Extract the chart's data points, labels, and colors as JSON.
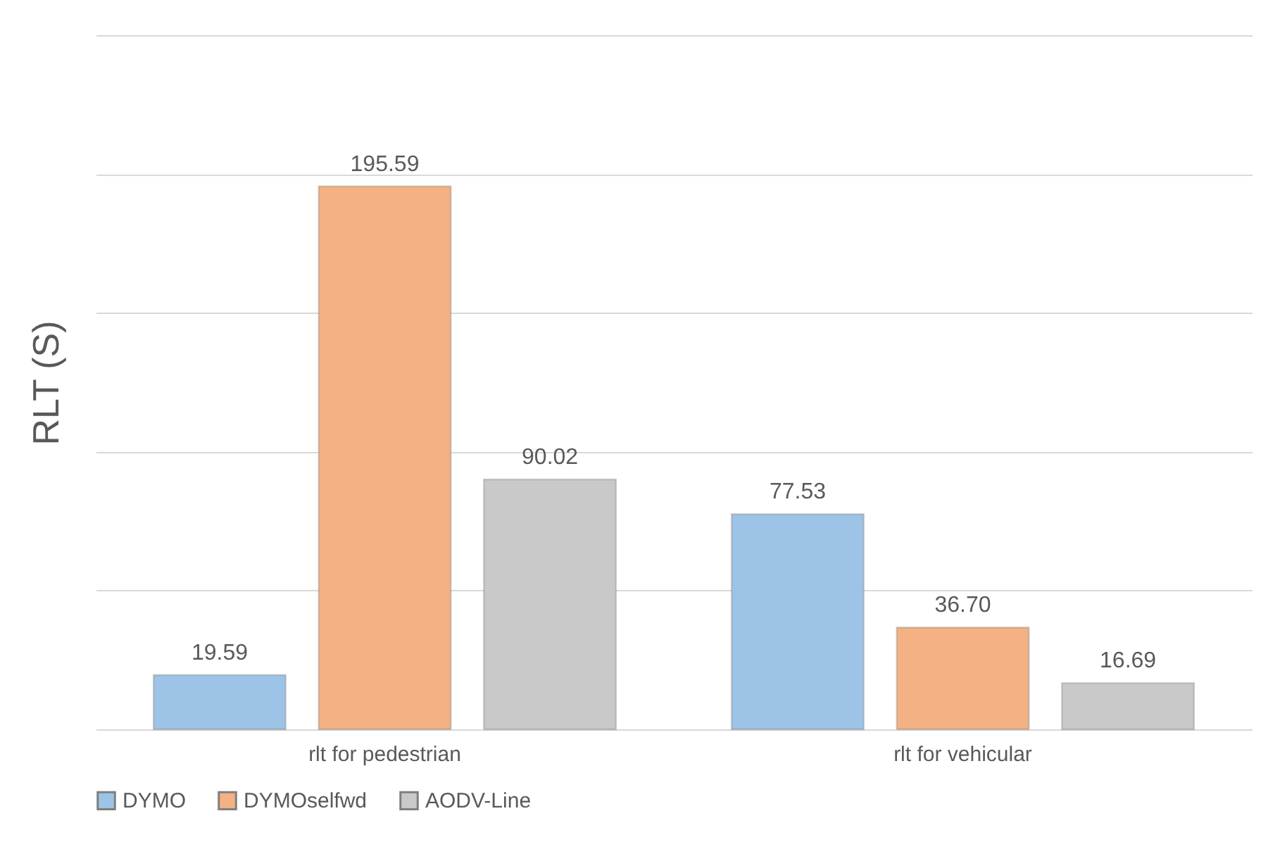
{
  "chart_data": {
    "type": "bar",
    "ylabel": "RLT (S)",
    "categories": [
      "rlt for pedestrian",
      "rlt for vehicular"
    ],
    "series": [
      {
        "name": "DYMO",
        "color": "#9dc3e6",
        "values": [
          19.59,
          77.53
        ],
        "value_labels": [
          "19.59",
          "77.53"
        ]
      },
      {
        "name": "DYMOselfwd",
        "color": "#f4b183",
        "values": [
          195.59,
          36.7
        ],
        "value_labels": [
          "195.59",
          "36.70"
        ]
      },
      {
        "name": "AODV-Line",
        "color": "#c9c9c9",
        "values": [
          90.02,
          16.69
        ],
        "value_labels": [
          "90.02",
          "16.69"
        ]
      }
    ],
    "ylim": [
      0,
      250
    ],
    "yticks": [
      {
        "value": 0,
        "label": null
      },
      {
        "value": 50,
        "label": null
      },
      {
        "value": 100,
        "label": null
      },
      {
        "value": 150,
        "label": null
      },
      {
        "value": 200,
        "label": null
      },
      {
        "value": 250,
        "label": null
      }
    ],
    "grid": "y",
    "legend": "bottom"
  }
}
